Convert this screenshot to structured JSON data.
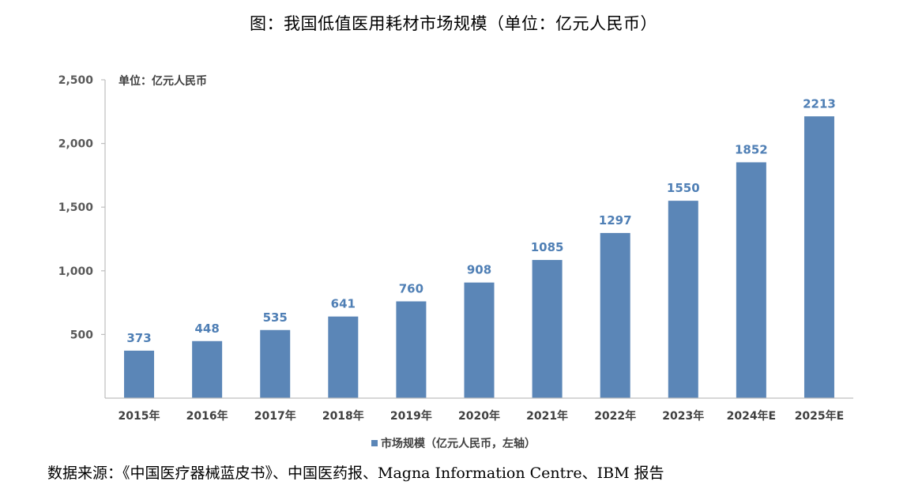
{
  "figure": {
    "title": "图：我国低值医用耗材市场规模（单位：亿元人民币）",
    "source": "数据来源：《中国医疗器械蓝皮书》、中国医药报、Magna Information Centre、IBM 报告"
  },
  "chart_data": {
    "type": "bar",
    "unit_label": "单位：亿元人民币",
    "categories": [
      "2015年",
      "2016年",
      "2017年",
      "2018年",
      "2019年",
      "2020年",
      "2021年",
      "2022年",
      "2023年",
      "2024年E",
      "2025年E"
    ],
    "series": [
      {
        "name": "市场规模（亿元人民币，左轴）",
        "values": [
          373,
          448,
          535,
          641,
          760,
          908,
          1085,
          1297,
          1550,
          1852,
          2213
        ],
        "color": "#5b86b7"
      }
    ],
    "y_ticks": [
      500,
      1000,
      1500,
      2000,
      2500
    ],
    "y_tick_labels": [
      "500",
      "1,000",
      "1,500",
      "2,000",
      "2,500"
    ],
    "ylim": [
      0,
      2500
    ],
    "legend_position": "bottom",
    "grid": false,
    "data_label_color": "#4f7fb5"
  }
}
